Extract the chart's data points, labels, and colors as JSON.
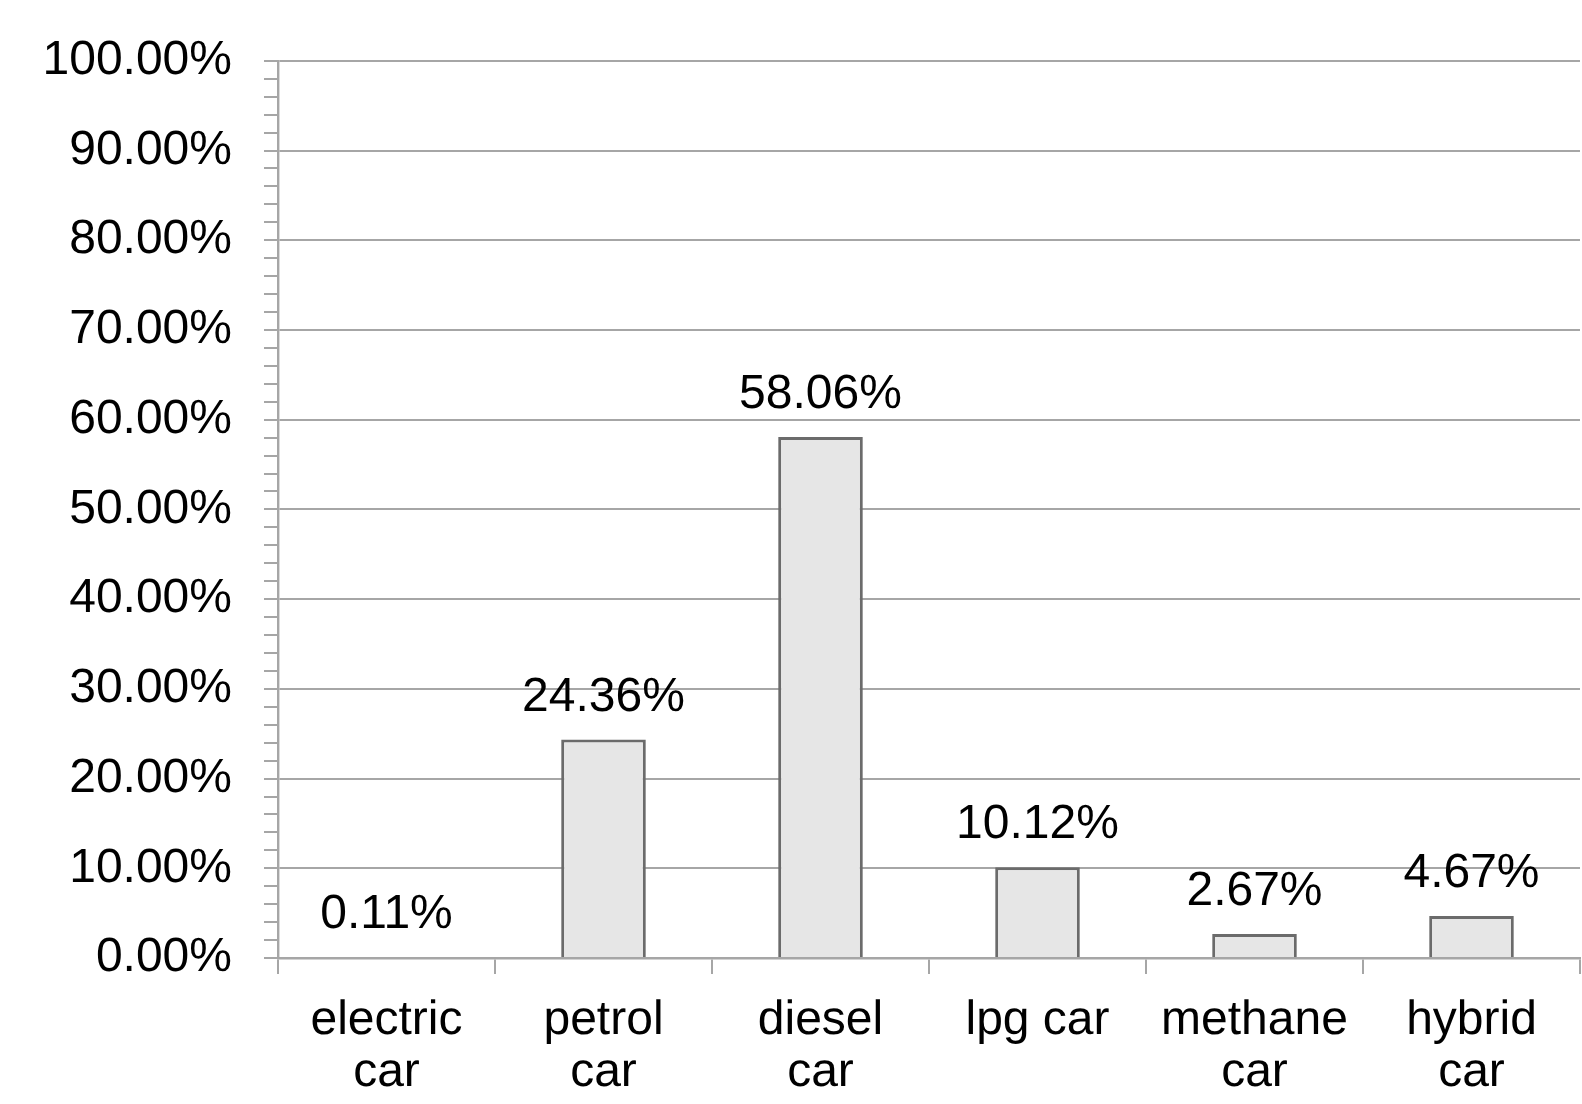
{
  "chart_data": {
    "type": "bar",
    "categories": [
      "electric car",
      "petrol car",
      "diesel car",
      "lpg car",
      "methane car",
      "hybrid car"
    ],
    "values": [
      0.11,
      24.36,
      58.06,
      10.12,
      2.67,
      4.67
    ],
    "value_labels": [
      "0.11%",
      "24.36%",
      "58.06%",
      "10.12%",
      "2.67%",
      "4.67%"
    ],
    "color": "#e6e6e6",
    "ylim": [
      0,
      100
    ],
    "yticks": [
      {
        "value": 0,
        "label": "0.00%"
      },
      {
        "value": 2,
        "label": null
      },
      {
        "value": 4,
        "label": null
      },
      {
        "value": 6,
        "label": null
      },
      {
        "value": 8,
        "label": null
      },
      {
        "value": 10,
        "label": "10.00%"
      },
      {
        "value": 12,
        "label": null
      },
      {
        "value": 14,
        "label": null
      },
      {
        "value": 16,
        "label": null
      },
      {
        "value": 18,
        "label": null
      },
      {
        "value": 20,
        "label": "20.00%"
      },
      {
        "value": 22,
        "label": null
      },
      {
        "value": 24,
        "label": null
      },
      {
        "value": 26,
        "label": null
      },
      {
        "value": 28,
        "label": null
      },
      {
        "value": 30,
        "label": "30.00%"
      },
      {
        "value": 32,
        "label": null
      },
      {
        "value": 34,
        "label": null
      },
      {
        "value": 36,
        "label": null
      },
      {
        "value": 38,
        "label": null
      },
      {
        "value": 40,
        "label": "40.00%"
      },
      {
        "value": 42,
        "label": null
      },
      {
        "value": 44,
        "label": null
      },
      {
        "value": 46,
        "label": null
      },
      {
        "value": 48,
        "label": null
      },
      {
        "value": 50,
        "label": "50.00%"
      },
      {
        "value": 52,
        "label": null
      },
      {
        "value": 54,
        "label": null
      },
      {
        "value": 56,
        "label": null
      },
      {
        "value": 58,
        "label": null
      },
      {
        "value": 60,
        "label": "60.00%"
      },
      {
        "value": 62,
        "label": null
      },
      {
        "value": 64,
        "label": null
      },
      {
        "value": 66,
        "label": null
      },
      {
        "value": 68,
        "label": null
      },
      {
        "value": 70,
        "label": "70.00%"
      },
      {
        "value": 72,
        "label": null
      },
      {
        "value": 74,
        "label": null
      },
      {
        "value": 76,
        "label": null
      },
      {
        "value": 78,
        "label": null
      },
      {
        "value": 80,
        "label": "80.00%"
      },
      {
        "value": 82,
        "label": null
      },
      {
        "value": 84,
        "label": null
      },
      {
        "value": 86,
        "label": null
      },
      {
        "value": 88,
        "label": null
      },
      {
        "value": 90,
        "label": "90.00%"
      },
      {
        "value": 92,
        "label": null
      },
      {
        "value": 94,
        "label": null
      },
      {
        "value": 96,
        "label": null
      },
      {
        "value": 98,
        "label": null
      },
      {
        "value": 100,
        "label": "100.00%"
      }
    ],
    "grid": "y"
  }
}
